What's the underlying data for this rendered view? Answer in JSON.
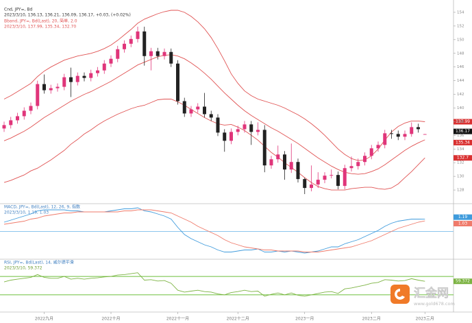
{
  "chart_data": [
    {
      "type": "candlestick",
      "title": "Cnd, JPY=, Bd",
      "subtitle": "2023/3/10, 136.13, 136.21, 136.09, 136.17, +0.03, (+0.02%)",
      "up_color": "#e0357a",
      "down_color": "#222222",
      "ylim": [
        126,
        155
      ],
      "yticks": [
        128,
        130,
        132,
        134,
        136,
        138,
        140,
        142,
        144,
        146,
        148,
        150,
        152,
        154
      ],
      "xticks": [
        {
          "value": 6,
          "label": "2022九月"
        },
        {
          "value": 16,
          "label": "2022十月"
        },
        {
          "value": 26,
          "label": "2022十一月"
        },
        {
          "value": 35,
          "label": "2022十二月"
        },
        {
          "value": 45,
          "label": "2023一月"
        },
        {
          "value": 55,
          "label": "2023二月"
        },
        {
          "value": 63,
          "label": "2023三月"
        }
      ],
      "open": [
        137.0,
        137.5,
        138.2,
        138.8,
        139.6,
        140.3,
        143.5,
        142.6,
        142.9,
        143.1,
        144.5,
        143.8,
        144.7,
        144.4,
        145.1,
        145.5,
        146.5,
        147.2,
        148.6,
        149.4,
        150.1,
        151.2,
        147.6,
        148.3,
        147.6,
        148.2,
        146.5,
        141.0,
        139.2,
        139.8,
        140.2,
        139.1,
        138.6,
        136.4,
        135.2,
        136.5,
        136.9,
        137.6,
        136.5,
        136.8,
        131.6,
        132.5,
        133.2,
        131.0,
        132.1,
        129.6,
        128.3,
        128.8,
        129.5,
        130.1,
        130.2,
        128.6,
        131.2,
        131.5,
        132.1,
        133.0,
        134.1,
        134.6,
        136.3,
        136.2,
        135.8,
        136.2,
        137.2,
        136.13
      ],
      "high": [
        138.0,
        138.7,
        139.3,
        140.1,
        140.8,
        144.0,
        144.9,
        143.4,
        143.6,
        145.0,
        145.9,
        145.2,
        145.2,
        145.6,
        146.0,
        147.0,
        147.7,
        149.1,
        149.9,
        150.6,
        151.9,
        151.9,
        148.8,
        148.8,
        148.7,
        148.7,
        147.0,
        141.5,
        140.3,
        140.7,
        142.2,
        139.6,
        139.1,
        136.9,
        137.0,
        137.4,
        138.1,
        138.1,
        137.9,
        137.5,
        133.0,
        134.5,
        133.7,
        134.8,
        132.6,
        129.8,
        131.6,
        130.6,
        130.6,
        131.0,
        130.7,
        131.7,
        132.9,
        132.6,
        133.5,
        134.6,
        135.1,
        136.8,
        136.8,
        136.7,
        136.7,
        137.9,
        137.7,
        136.21
      ],
      "low": [
        136.5,
        137.0,
        137.7,
        138.3,
        139.1,
        139.8,
        142.1,
        142.1,
        142.4,
        142.6,
        141.6,
        143.3,
        143.9,
        143.9,
        144.6,
        145.0,
        146.0,
        146.7,
        148.1,
        148.9,
        149.6,
        146.2,
        145.5,
        147.1,
        147.1,
        146.0,
        140.5,
        138.7,
        138.7,
        139.3,
        138.6,
        138.1,
        135.9,
        133.6,
        134.7,
        136.0,
        136.4,
        134.6,
        136.0,
        130.6,
        131.1,
        132.0,
        129.5,
        130.5,
        129.1,
        127.4,
        127.8,
        128.3,
        129.0,
        129.7,
        128.1,
        128.1,
        130.7,
        131.0,
        131.6,
        132.5,
        133.6,
        134.1,
        135.5,
        135.3,
        135.3,
        135.8,
        136.4,
        136.09
      ],
      "close": [
        137.5,
        138.2,
        138.8,
        139.6,
        140.3,
        143.5,
        142.6,
        142.9,
        143.1,
        144.5,
        143.8,
        144.7,
        144.4,
        145.1,
        145.5,
        146.5,
        147.2,
        148.6,
        149.4,
        150.1,
        151.2,
        147.6,
        148.3,
        147.6,
        148.2,
        146.5,
        141.0,
        139.2,
        139.8,
        140.2,
        139.1,
        138.6,
        136.4,
        135.2,
        136.5,
        136.9,
        137.6,
        136.5,
        136.8,
        131.6,
        132.5,
        133.2,
        131.0,
        132.1,
        129.6,
        128.3,
        128.8,
        129.5,
        130.1,
        130.2,
        128.6,
        131.2,
        131.5,
        132.1,
        133.0,
        134.1,
        134.6,
        136.3,
        136.2,
        135.8,
        136.2,
        137.2,
        136.9,
        136.17
      ],
      "bands": {
        "title": "Bband, JPY=, Bd(Last), 20, 简单, 2.0",
        "subtitle": "2023/3/10, 137.99, 135.34, 132.70",
        "color": "#e05252",
        "upper": [
          141.3,
          141.8,
          142.4,
          143.0,
          143.6,
          144.6,
          145.4,
          146.0,
          146.5,
          147.0,
          147.3,
          147.6,
          147.8,
          148.0,
          148.3,
          148.7,
          149.2,
          149.9,
          150.7,
          151.5,
          152.4,
          153.0,
          153.4,
          153.8,
          154.1,
          154.3,
          154.3,
          154.0,
          153.4,
          152.6,
          151.6,
          150.3,
          148.7,
          146.9,
          145.0,
          143.6,
          142.5,
          141.8,
          141.3,
          141.0,
          140.7,
          140.4,
          140.0,
          139.5,
          139.0,
          138.4,
          137.7,
          136.9,
          136.0,
          135.0,
          134.0,
          133.2,
          132.6,
          132.3,
          132.4,
          133.0,
          134.0,
          135.3,
          136.5,
          137.3,
          137.8,
          138.1,
          138.1,
          137.99
        ],
        "middle": [
          135.2,
          135.6,
          136.1,
          136.6,
          137.2,
          137.9,
          138.6,
          139.2,
          139.8,
          140.4,
          141.0,
          141.5,
          142.0,
          142.4,
          142.9,
          143.4,
          143.9,
          144.5,
          145.1,
          145.7,
          146.3,
          146.7,
          147.1,
          147.5,
          147.7,
          147.8,
          147.6,
          147.2,
          146.6,
          145.9,
          145.1,
          144.2,
          143.2,
          142.2,
          141.3,
          140.4,
          139.6,
          138.9,
          138.3,
          137.7,
          137.1,
          136.6,
          136.0,
          135.4,
          134.8,
          134.1,
          133.4,
          132.7,
          132.1,
          131.5,
          131.0,
          130.6,
          130.4,
          130.3,
          130.4,
          130.7,
          131.1,
          131.7,
          132.4,
          133.1,
          133.8,
          134.4,
          134.9,
          135.34
        ],
        "lower": [
          129.1,
          129.4,
          129.8,
          130.2,
          130.8,
          131.2,
          131.8,
          132.4,
          133.1,
          133.8,
          134.7,
          135.4,
          136.2,
          136.8,
          137.5,
          138.1,
          138.6,
          139.1,
          139.5,
          139.9,
          140.2,
          140.4,
          140.8,
          141.2,
          141.3,
          141.3,
          140.9,
          140.4,
          139.8,
          139.2,
          138.6,
          138.1,
          137.7,
          137.5,
          137.6,
          137.2,
          136.7,
          136.0,
          135.3,
          134.4,
          133.5,
          132.8,
          132.0,
          131.3,
          130.6,
          129.8,
          129.1,
          128.5,
          128.2,
          128.0,
          128.0,
          128.0,
          128.2,
          128.3,
          128.4,
          128.4,
          128.2,
          128.1,
          128.3,
          128.9,
          129.8,
          130.7,
          131.7,
          132.7
        ]
      }
    },
    {
      "type": "line",
      "title": "MACD, JPY=, Bd(Last), 12, 26, 9, 指数",
      "subtitle": "2023/3/10, 1.19, 1.03",
      "ylim": [
        -2.7,
        2.7
      ],
      "hlines": [
        0
      ],
      "hline_color": "#8cc6ee",
      "series": [
        {
          "color": "#3f9bdc",
          "values": [
            0.9,
            1.1,
            1.3,
            1.5,
            1.7,
            2.0,
            2.1,
            2.1,
            2.1,
            2.1,
            2.0,
            2.0,
            1.9,
            1.9,
            1.9,
            1.9,
            2.0,
            2.1,
            2.2,
            2.2,
            2.3,
            2.0,
            1.9,
            1.7,
            1.5,
            1.2,
            0.4,
            -0.3,
            -0.7,
            -1.0,
            -1.3,
            -1.5,
            -1.8,
            -2.0,
            -2.0,
            -1.9,
            -1.8,
            -1.8,
            -1.7,
            -2.0,
            -2.0,
            -1.9,
            -2.0,
            -1.9,
            -2.0,
            -2.1,
            -2.0,
            -1.9,
            -1.7,
            -1.5,
            -1.5,
            -1.2,
            -1.0,
            -0.8,
            -0.5,
            -0.2,
            0.1,
            0.5,
            0.8,
            1.0,
            1.1,
            1.2,
            1.2,
            1.19
          ]
        },
        {
          "color": "#ef7a6a",
          "values": [
            0.7,
            0.8,
            0.9,
            1.0,
            1.2,
            1.3,
            1.5,
            1.6,
            1.7,
            1.8,
            1.8,
            1.9,
            1.9,
            1.9,
            1.9,
            1.9,
            1.9,
            1.9,
            2.0,
            2.0,
            2.1,
            2.1,
            2.1,
            2.0,
            1.9,
            1.8,
            1.5,
            1.2,
            0.9,
            0.5,
            0.2,
            -0.1,
            -0.4,
            -0.8,
            -1.1,
            -1.3,
            -1.5,
            -1.6,
            -1.7,
            -1.8,
            -1.8,
            -1.9,
            -1.9,
            -1.9,
            -1.9,
            -2.0,
            -2.0,
            -2.0,
            -1.9,
            -1.8,
            -1.7,
            -1.6,
            -1.5,
            -1.3,
            -1.1,
            -0.9,
            -0.6,
            -0.3,
            0.0,
            0.3,
            0.5,
            0.7,
            0.9,
            1.03
          ]
        }
      ]
    },
    {
      "type": "line",
      "title": "RSI, JPY=, Bd(Last), 14, 威尔德平滑",
      "subtitle": "2023/3/10, 59.372",
      "ylim": [
        0,
        100
      ],
      "hlines": [
        70,
        30
      ],
      "hline_color": "#6cbf3a",
      "series": [
        {
          "color": "#7cb342",
          "values": [
            58,
            62,
            64,
            66,
            68,
            74,
            68,
            66,
            66,
            70,
            64,
            66,
            64,
            66,
            67,
            69,
            70,
            73,
            74,
            76,
            78,
            62,
            63,
            60,
            61,
            55,
            40,
            36,
            38,
            40,
            37,
            36,
            32,
            30,
            35,
            37,
            40,
            37,
            38,
            27,
            31,
            34,
            30,
            34,
            29,
            27,
            30,
            33,
            36,
            37,
            33,
            43,
            45,
            48,
            51,
            55,
            57,
            63,
            62,
            60,
            61,
            65,
            62,
            59.372
          ]
        }
      ]
    }
  ],
  "watermark": {
    "name": "汇金网",
    "url": "www.gold678.com"
  }
}
